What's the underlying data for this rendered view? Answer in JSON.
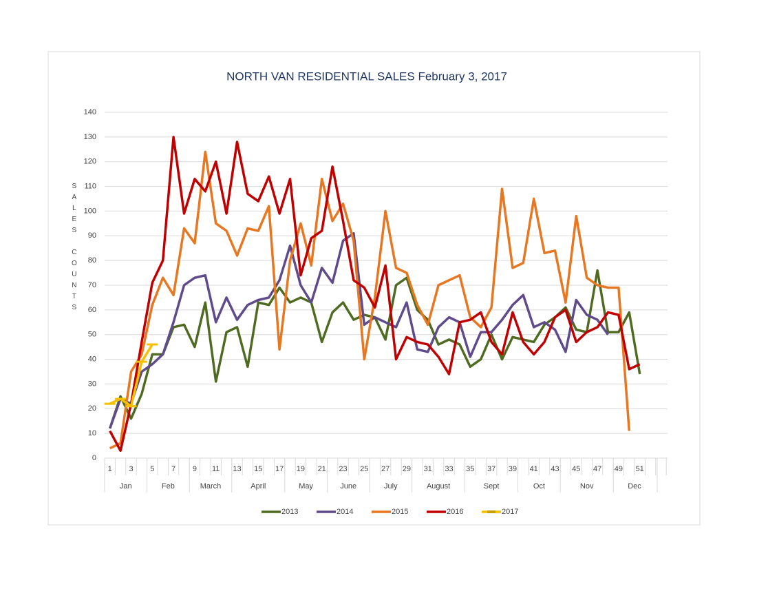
{
  "chart_data": {
    "type": "line",
    "title": "NORTH VAN RESIDENTIAL SALES February 3, 2017",
    "y_label": "SALES COUNTS",
    "categories": [
      "1",
      null,
      "3",
      null,
      "5",
      null,
      "7",
      null,
      "9",
      null,
      "11",
      null,
      "13",
      null,
      "15",
      null,
      "17",
      null,
      "19",
      null,
      "21",
      null,
      "23",
      null,
      "25",
      null,
      "27",
      null,
      "29",
      null,
      "31",
      null,
      "33",
      null,
      "35",
      null,
      "37",
      null,
      "39",
      null,
      "41",
      null,
      "43",
      null,
      "45",
      null,
      "47",
      null,
      "49",
      null,
      "51",
      null
    ],
    "month_labels": [
      "Jan",
      "Jan",
      "Jan",
      "Jan",
      "Feb",
      "Feb",
      "Feb",
      "Feb",
      "March",
      "March",
      "March",
      "March",
      "April",
      "April",
      "April",
      "April",
      "April",
      "May",
      "May",
      "May",
      "May",
      "June",
      "June",
      "June",
      "June",
      "July",
      "July",
      "July",
      "July",
      "August",
      "August",
      "August",
      "August",
      "August",
      "Sept",
      "Sept",
      "Sept",
      "Sept",
      "Sept",
      "Oct",
      "Oct",
      "Oct",
      "Oct",
      "Nov",
      "Nov",
      "Nov",
      "Nov",
      "Nov",
      "Dec",
      "Dec",
      "Dec",
      "Dec"
    ],
    "ylim": [
      0,
      140
    ],
    "yticks": [
      0,
      10,
      20,
      30,
      40,
      50,
      60,
      70,
      80,
      90,
      100,
      110,
      120,
      130,
      140
    ],
    "grid": true,
    "legend": "bottom",
    "series": [
      {
        "name": "2013",
        "color": "#4f6b22",
        "values": [
          12,
          25,
          16,
          26,
          42,
          42,
          53,
          54,
          45,
          63,
          31,
          51,
          53,
          37,
          63,
          62,
          69,
          63,
          65,
          63,
          47,
          59,
          63,
          56,
          58,
          57,
          48,
          70,
          73,
          60,
          56,
          46,
          48,
          46,
          37,
          40,
          50,
          40,
          49,
          48,
          47,
          54,
          57,
          61,
          52,
          51,
          76,
          51,
          51,
          59,
          34,
          null
        ]
      },
      {
        "name": "2014",
        "color": "#5f4b8b",
        "values": [
          12,
          24,
          22,
          35,
          38,
          42,
          55,
          70,
          73,
          74,
          55,
          65,
          56,
          62,
          64,
          65,
          72,
          86,
          70,
          63,
          77,
          71,
          88,
          91,
          54,
          57,
          55,
          53,
          63,
          44,
          43,
          53,
          57,
          55,
          41,
          51,
          51,
          56,
          62,
          66,
          53,
          55,
          52,
          43,
          64,
          58,
          56,
          50,
          null,
          null,
          null,
          null
        ]
      },
      {
        "name": "2015",
        "color": "#e87722",
        "values": [
          4,
          6,
          35,
          42,
          62,
          73,
          66,
          93,
          87,
          124,
          95,
          92,
          82,
          93,
          92,
          102,
          44,
          80,
          95,
          78,
          113,
          96,
          103,
          88,
          40,
          65,
          100,
          77,
          75,
          62,
          54,
          70,
          72,
          74,
          57,
          53,
          61,
          109,
          77,
          79,
          105,
          83,
          84,
          63,
          98,
          73,
          70,
          69,
          69,
          11,
          null,
          null
        ]
      },
      {
        "name": "2016",
        "color": "#c00000",
        "values": [
          11,
          3,
          22,
          47,
          71,
          80,
          130,
          99,
          113,
          108,
          120,
          99,
          128,
          107,
          104,
          114,
          99,
          113,
          74,
          89,
          92,
          118,
          96,
          72,
          69,
          61,
          78,
          40,
          49,
          47,
          46,
          41,
          34,
          55,
          56,
          59,
          47,
          42,
          59,
          47,
          42,
          47,
          57,
          60,
          47,
          51,
          53,
          59,
          58,
          36,
          38,
          null
        ]
      },
      {
        "name": "2017",
        "color": "#f5c000",
        "values": [
          22,
          24,
          21,
          39,
          46,
          null,
          null,
          null,
          null,
          null,
          null,
          null,
          null,
          null,
          null,
          null,
          null,
          null,
          null,
          null,
          null,
          null,
          null,
          null,
          null,
          null,
          null,
          null,
          null,
          null,
          null,
          null,
          null,
          null,
          null,
          null,
          null,
          null,
          null,
          null,
          null,
          null,
          null,
          null,
          null,
          null,
          null,
          null,
          null,
          null,
          null,
          null
        ],
        "markers": true
      }
    ]
  }
}
